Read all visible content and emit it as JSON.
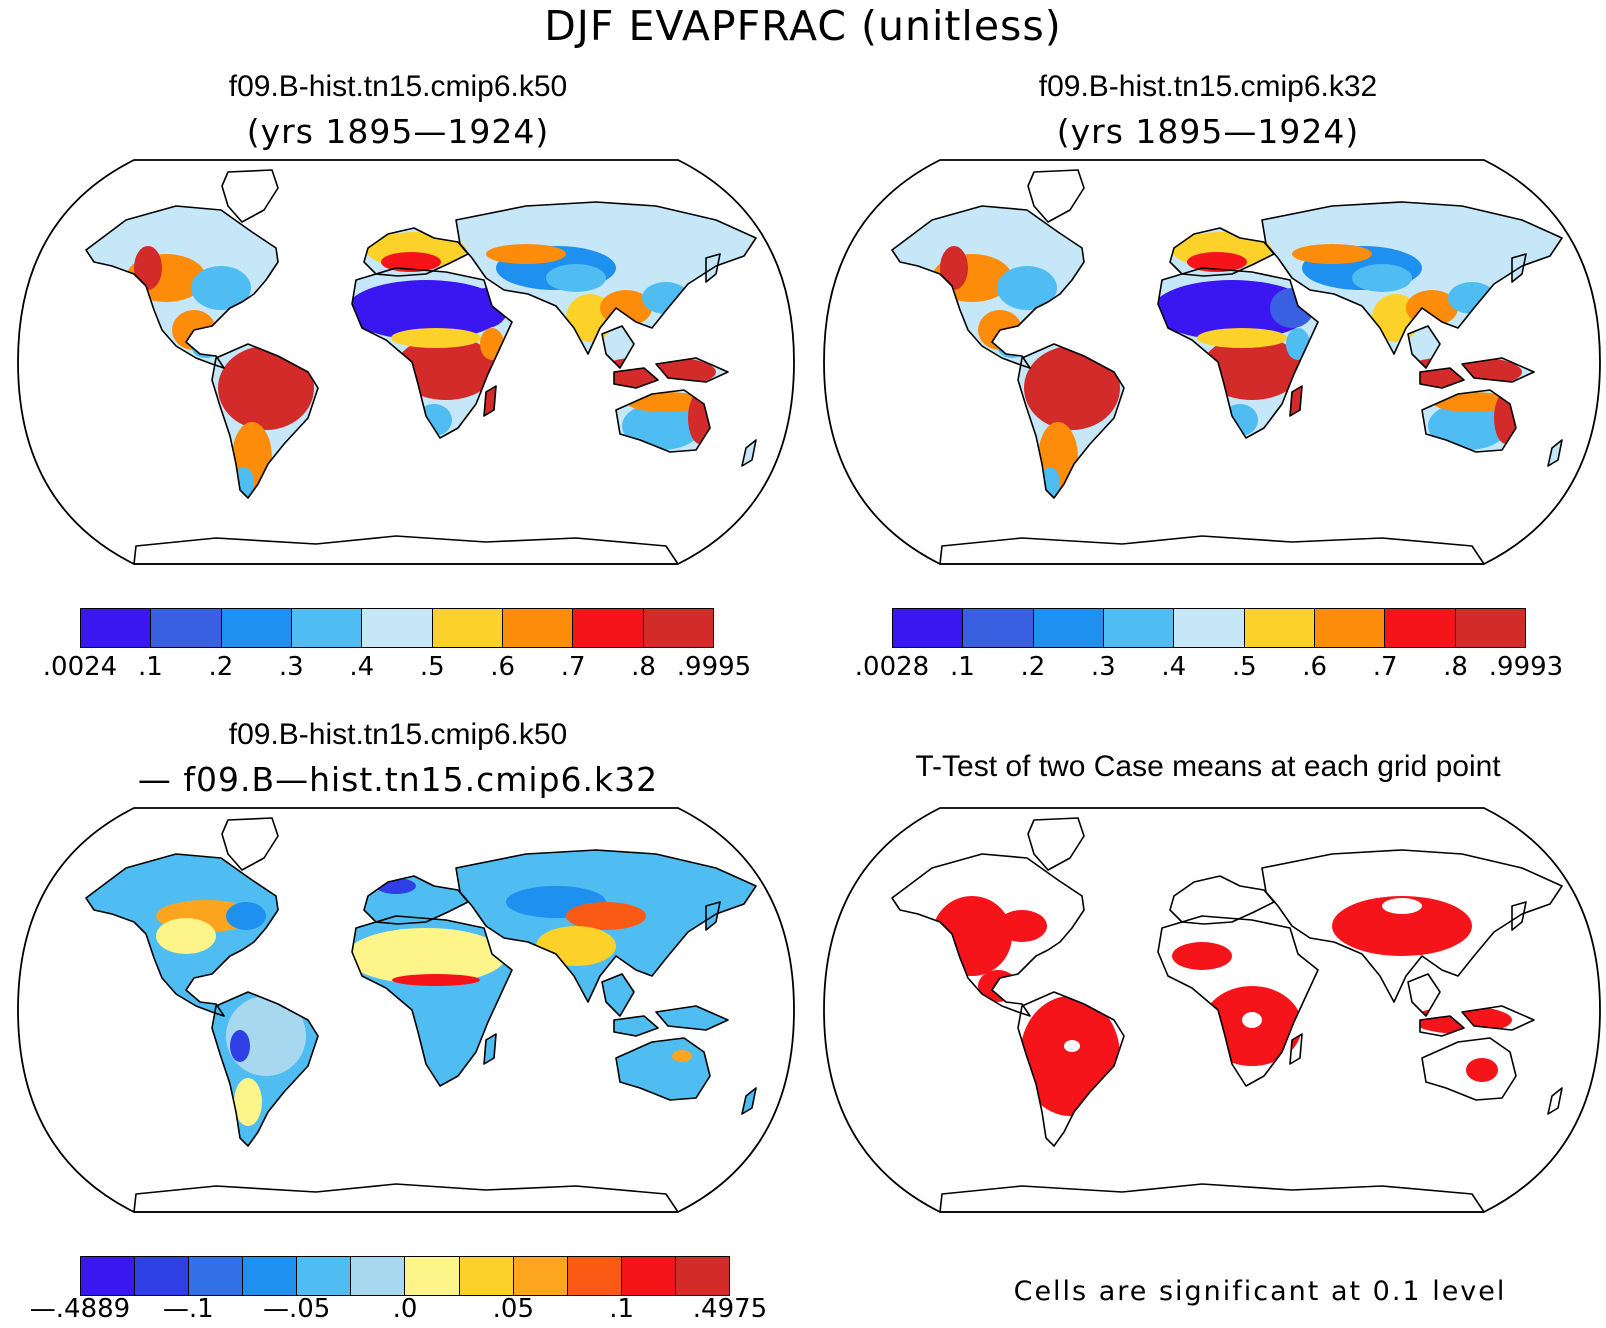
{
  "title": "DJF EVAPFRAC (unitless)",
  "panels": [
    {
      "id": "case1",
      "title": "f09.B-hist.tn15.cmip6.k50",
      "subtitle": "(yrs 1895—1924)"
    },
    {
      "id": "case2",
      "title": "f09.B-hist.tn15.cmip6.k32",
      "subtitle": "(yrs 1895—1924)"
    },
    {
      "id": "diff",
      "title": "f09.B-hist.tn15.cmip6.k50",
      "subtitle": "— f09.B—hist.tn15.cmip6.k32"
    },
    {
      "id": "ttest",
      "title": "T-Test of two Case means at each grid point",
      "subtitle": ""
    }
  ],
  "colorbars": {
    "case1": {
      "colors": [
        "#3a17f0",
        "#3860e0",
        "#1e90f0",
        "#4fbdf2",
        "#c5e7f7",
        "#fcd22a",
        "#fd8c0a",
        "#f5141a",
        "#d32a2a"
      ],
      "labels": [
        ".0024",
        ".1",
        ".2",
        ".3",
        ".4",
        ".5",
        ".6",
        ".7",
        ".8",
        ".9995"
      ]
    },
    "case2": {
      "colors": [
        "#3a17f0",
        "#3860e0",
        "#1e90f0",
        "#4fbdf2",
        "#c5e7f7",
        "#fcd22a",
        "#fd8c0a",
        "#f5141a",
        "#d32a2a"
      ],
      "labels": [
        ".0028",
        ".1",
        ".2",
        ".3",
        ".4",
        ".5",
        ".6",
        ".7",
        ".8",
        ".9993"
      ]
    },
    "diff": {
      "colors": [
        "#3a17f0",
        "#2e3fe6",
        "#3170e6",
        "#1e90f0",
        "#4fbdf2",
        "#a8d8f0",
        "#fdf58a",
        "#fcd22a",
        "#fda51e",
        "#fb5a14",
        "#f5141a",
        "#d32a2a"
      ],
      "labels": [
        "—.4889",
        "—.1",
        "—.05",
        ".0",
        ".05",
        ".1",
        ".4975"
      ],
      "label_boundaries": [
        0,
        2,
        4,
        6,
        8,
        10,
        12
      ]
    }
  },
  "significance_note": "Cells are significant at 0.1 level",
  "map_colors": {
    "sahara_case1": "#3a17f0",
    "tropics_wet": "#d32a2a",
    "significant": "#f5141a",
    "diff_neutral": "#fdf58a",
    "diff_negative": "#4fbdf2"
  }
}
